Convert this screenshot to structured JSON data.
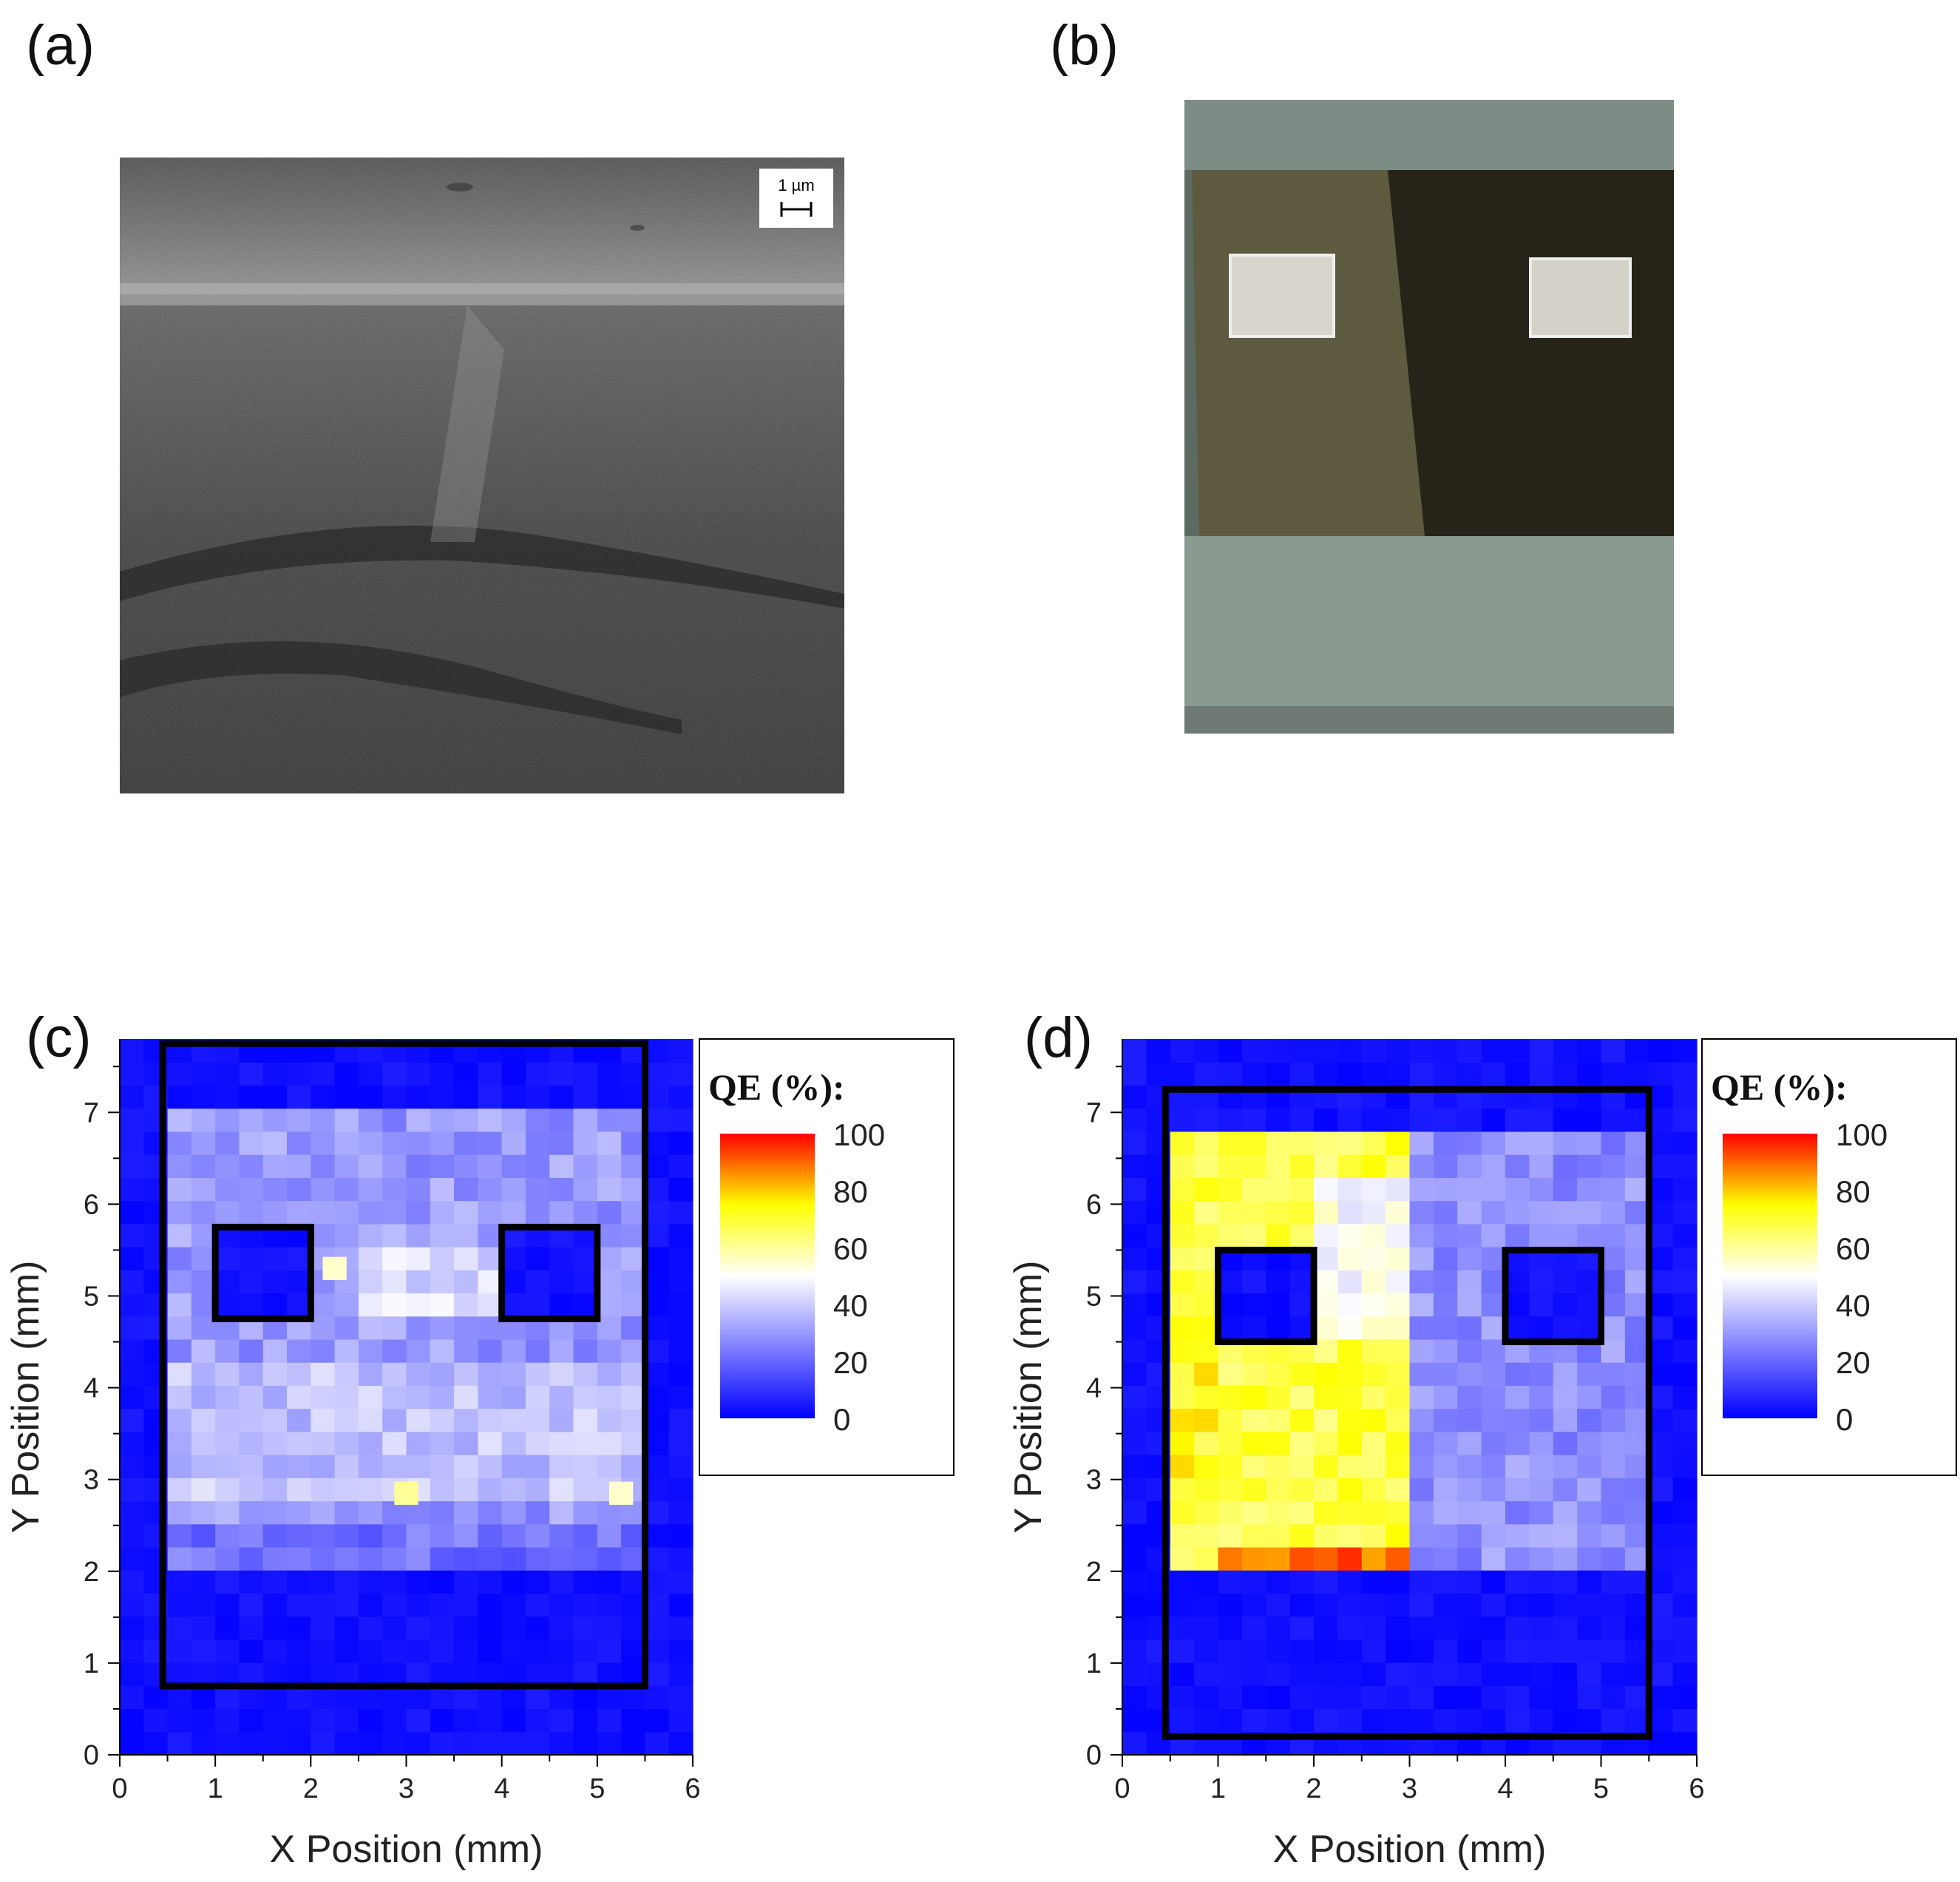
{
  "panels": {
    "a": {
      "label": "(a)",
      "scale_bar_label": "1 µm"
    },
    "b": {
      "label": "(b)"
    },
    "c": {
      "label": "(c)"
    },
    "d": {
      "label": "(d)"
    }
  },
  "colorbar": {
    "title": "QE (%):",
    "ticks": [
      "100",
      "80",
      "60",
      "40",
      "20",
      "0"
    ],
    "colors": [
      "#ff0000",
      "#ffff00",
      "#ffffff",
      "#0000ff"
    ]
  },
  "chart_data": [
    {
      "type": "heatmap",
      "panel": "c",
      "xlabel": "X Position (mm)",
      "ylabel": "Y Position (mm)",
      "xlim": [
        0,
        6
      ],
      "ylim": [
        0,
        7.8
      ],
      "xticks": [
        "0",
        "1",
        "2",
        "3",
        "4",
        "5",
        "6"
      ],
      "yticks": [
        "0",
        "1",
        "2",
        "3",
        "4",
        "5",
        "6",
        "7"
      ],
      "zlabel": "QE (%)",
      "zlim": [
        0,
        100
      ],
      "regions": [
        {
          "x": [
            0,
            6
          ],
          "y": [
            0,
            7.8
          ],
          "qe": 3
        },
        {
          "x": [
            0.5,
            5.5
          ],
          "y": [
            2.0,
            7.0
          ],
          "qe": 30
        },
        {
          "x": [
            0.5,
            5.5
          ],
          "y": [
            2.0,
            2.6
          ],
          "qe": 22
        },
        {
          "x": [
            0.5,
            5.5
          ],
          "y": [
            2.7,
            4.2
          ],
          "qe": 38
        },
        {
          "x": [
            2.4,
            4.6
          ],
          "y": [
            4.8,
            5.5
          ],
          "qe": 42
        },
        {
          "x": [
            1.0,
            2.0
          ],
          "y": [
            4.8,
            5.7
          ],
          "qe": 3
        },
        {
          "x": [
            4.0,
            5.0
          ],
          "y": [
            4.8,
            5.7
          ],
          "qe": 3
        }
      ],
      "hotspots": [
        {
          "x": 3.0,
          "y": 2.85,
          "qe": 60
        },
        {
          "x": 2.25,
          "y": 5.3,
          "qe": 55
        },
        {
          "x": 5.25,
          "y": 2.85,
          "qe": 55
        }
      ],
      "outline_boxes": [
        {
          "x": [
            0.45,
            5.5
          ],
          "y": [
            0.75,
            7.75
          ]
        },
        {
          "x": [
            1.0,
            2.0
          ],
          "y": [
            4.75,
            5.75
          ]
        },
        {
          "x": [
            4.0,
            5.0
          ],
          "y": [
            4.75,
            5.75
          ]
        }
      ]
    },
    {
      "type": "heatmap",
      "panel": "d",
      "xlabel": "X Position (mm)",
      "ylabel": "Y Position (mm)",
      "xlim": [
        0,
        6
      ],
      "ylim": [
        0,
        7.8
      ],
      "xticks": [
        "0",
        "1",
        "2",
        "3",
        "4",
        "5",
        "6"
      ],
      "yticks": [
        "0",
        "1",
        "2",
        "3",
        "4",
        "5",
        "6",
        "7"
      ],
      "zlabel": "QE (%)",
      "zlim": [
        0,
        100
      ],
      "regions": [
        {
          "x": [
            0,
            6
          ],
          "y": [
            0,
            7.8
          ],
          "qe": 3
        },
        {
          "x": [
            0.6,
            5.5
          ],
          "y": [
            2.0,
            6.7
          ],
          "qe": 28
        },
        {
          "x": [
            0.6,
            2.9
          ],
          "y": [
            2.0,
            6.7
          ],
          "qe": 68
        },
        {
          "x": [
            2.0,
            2.9
          ],
          "y": [
            4.5,
            6.2
          ],
          "qe": 50
        },
        {
          "x": [
            0.6,
            1.1
          ],
          "y": [
            2.6,
            4.2
          ],
          "qe": 72
        },
        {
          "x": [
            0.9,
            2.9
          ],
          "y": [
            2.0,
            2.3
          ],
          "qe": 90
        },
        {
          "x": [
            1.0,
            2.0
          ],
          "y": [
            4.55,
            5.5
          ],
          "qe": 3
        },
        {
          "x": [
            4.0,
            5.0
          ],
          "y": [
            4.55,
            5.5
          ],
          "qe": 3
        }
      ],
      "hotspots": [],
      "outline_boxes": [
        {
          "x": [
            0.45,
            5.5
          ],
          "y": [
            0.2,
            7.25
          ]
        },
        {
          "x": [
            1.0,
            2.0
          ],
          "y": [
            4.5,
            5.5
          ]
        },
        {
          "x": [
            4.0,
            5.0
          ],
          "y": [
            4.5,
            5.5
          ]
        }
      ]
    }
  ]
}
